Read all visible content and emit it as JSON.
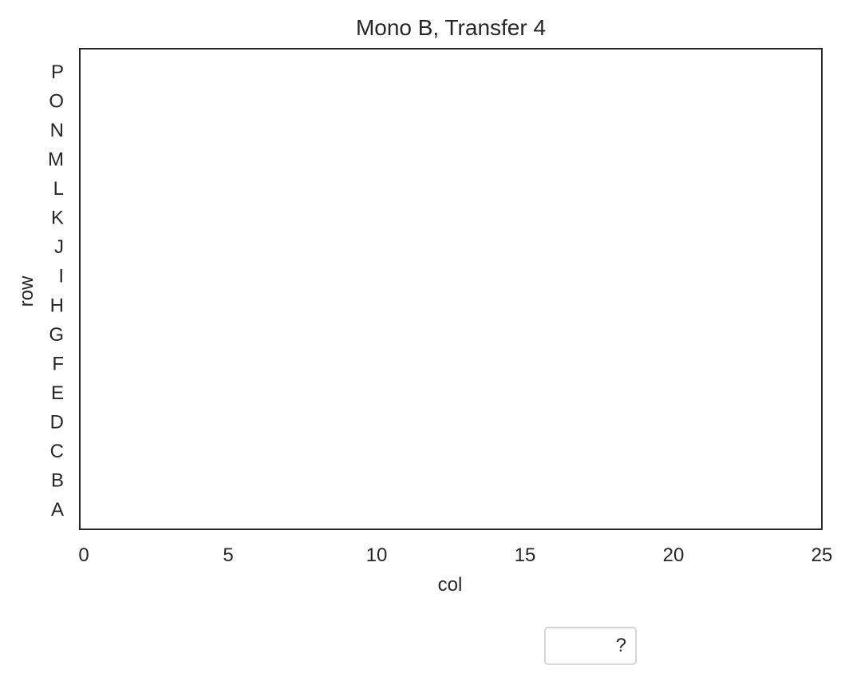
{
  "chart_data": {
    "type": "scatter",
    "title": "Mono B, Transfer 4",
    "xlabel": "col",
    "ylabel": "row",
    "xlim": [
      0,
      25
    ],
    "xticks": [
      0,
      5,
      10,
      15,
      20,
      25
    ],
    "y_categories": [
      "A",
      "B",
      "C",
      "D",
      "E",
      "F",
      "G",
      "H",
      "I",
      "J",
      "K",
      "L",
      "M",
      "N",
      "O",
      "P"
    ],
    "grid": false,
    "series": [],
    "legend": {
      "placement": "bottom-center, below plot",
      "entries": [
        {
          "label": "?"
        }
      ]
    }
  }
}
